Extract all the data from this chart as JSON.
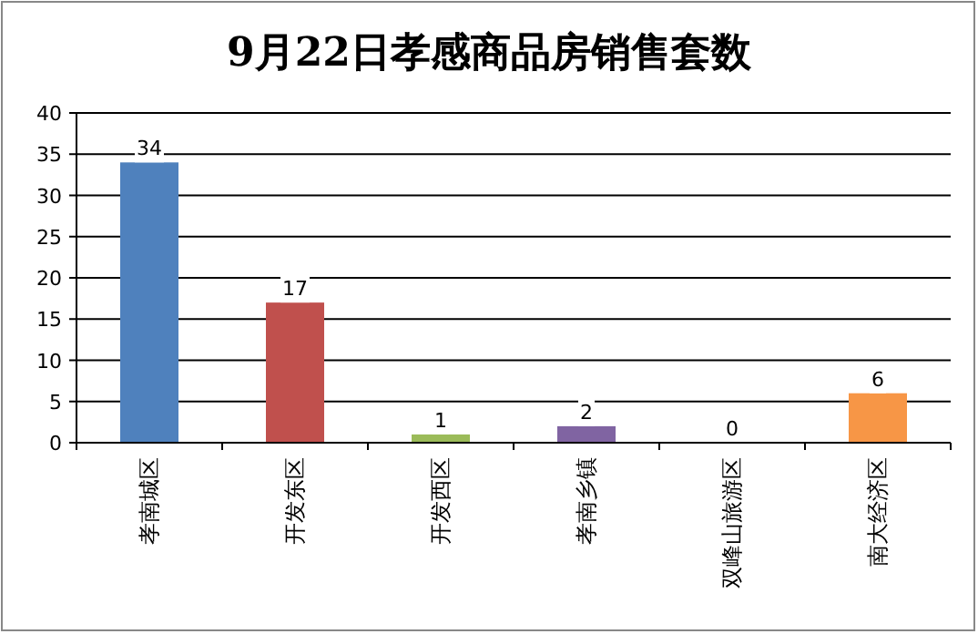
{
  "chart_data": {
    "type": "bar",
    "title": "9月22日孝感商品房销售套数",
    "categories": [
      "孝南城区",
      "开发东区",
      "开发西区",
      "孝南乡镇",
      "双峰山旅游区",
      "南大经济区"
    ],
    "values": [
      34,
      17,
      1,
      2,
      0,
      6
    ],
    "colors": [
      "#4f81bd",
      "#c0504d",
      "#9bbb59",
      "#8064a2",
      "#4bacc6",
      "#f79646"
    ],
    "ylim": [
      0,
      40
    ],
    "yticks": [
      0,
      5,
      10,
      15,
      20,
      25,
      30,
      35,
      40
    ],
    "grid": "y",
    "data_labels": true
  }
}
